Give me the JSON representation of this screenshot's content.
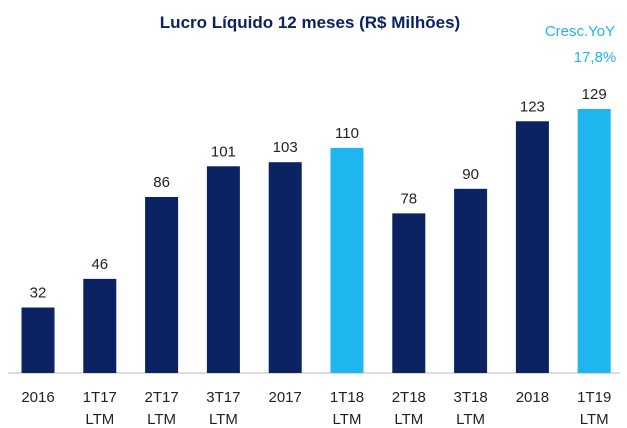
{
  "chart_data": {
    "type": "bar",
    "title": "Lucro Líquido 12 meses (R$ Milhões)",
    "annotations": [
      "Cresc.YoY",
      "17,8%"
    ],
    "categories": [
      "2016",
      "1T17 LTM",
      "2T17 LTM",
      "3T17 LTM",
      "2017",
      "1T18 LTM",
      "2T18 LTM",
      "3T18 LTM",
      "2018",
      "1T19 LTM"
    ],
    "values": [
      32,
      46,
      86,
      101,
      103,
      110,
      78,
      90,
      123,
      129
    ],
    "colors": [
      "#0b2263",
      "#0b2263",
      "#0b2263",
      "#0b2263",
      "#0b2263",
      "#1fb5ee",
      "#0b2263",
      "#0b2263",
      "#0b2263",
      "#1fb5ee"
    ]
  }
}
